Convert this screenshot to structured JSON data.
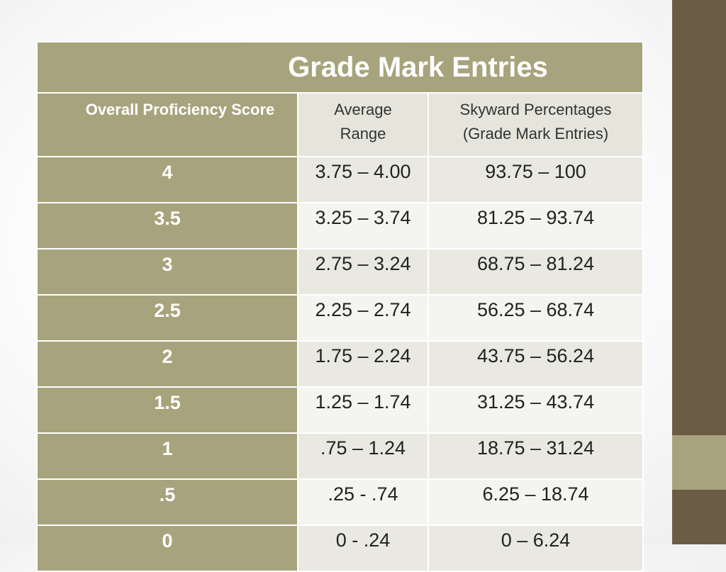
{
  "title": "Grade Mark Entries",
  "headers": {
    "score": "Overall Proficiency Score",
    "average_line1": "Average",
    "average_line2": "Range",
    "skyward_line1": "Skyward Percentages",
    "skyward_line2": "(Grade Mark Entries)"
  },
  "rows": [
    {
      "score": "4",
      "average": "3.75 – 4.00",
      "percent": "93.75 – 100"
    },
    {
      "score": "3.5",
      "average": "3.25 – 3.74",
      "percent": "81.25 – 93.74"
    },
    {
      "score": "3",
      "average": "2.75 – 3.24",
      "percent": "68.75 – 81.24"
    },
    {
      "score": "2.5",
      "average": "2.25 – 2.74",
      "percent": "56.25 – 68.74"
    },
    {
      "score": "2",
      "average": "1.75 – 2.24",
      "percent": "43.75 – 56.24"
    },
    {
      "score": "1.5",
      "average": "1.25 – 1.74",
      "percent": "31.25 – 43.74"
    },
    {
      "score": "1",
      "average": ".75 – 1.24",
      "percent": "18.75 – 31.24"
    },
    {
      "score": ".5",
      "average": ".25 - .74",
      "percent": "6.25 – 18.74"
    },
    {
      "score": "0",
      "average": "0 - .24",
      "percent": "0 – 6.24"
    }
  ],
  "colors": {
    "accent_olive": "#a7a37c",
    "sidebar_brown": "#6b5d45",
    "row_light": "#e9e9e2",
    "row_lighter": "#f4f4f1"
  }
}
